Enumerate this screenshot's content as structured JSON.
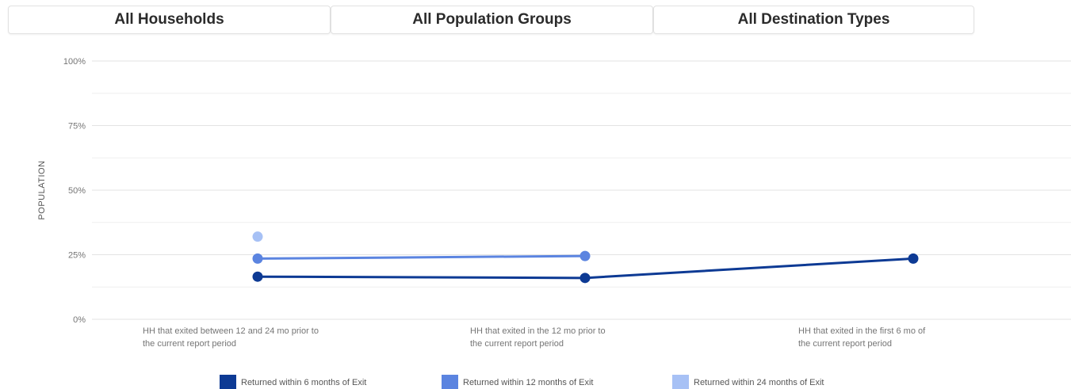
{
  "filters": {
    "households": "All Households",
    "population_groups": "All Population Groups",
    "destination_types": "All Destination Types"
  },
  "chart_data": {
    "type": "line",
    "title": "",
    "xlabel": "",
    "ylabel": "POPULATION",
    "ylim": [
      0,
      100
    ],
    "y_ticks": [
      "0%",
      "25%",
      "50%",
      "75%",
      "100%"
    ],
    "y_tick_values": [
      0,
      25,
      50,
      75,
      100
    ],
    "grid": true,
    "legend_position": "bottom",
    "categories": [
      [
        "HH that exited between 12 and 24 mo prior to",
        "the current report period"
      ],
      [
        "HH that exited in the 12 mo prior to",
        "the current report period"
      ],
      [
        "HH that exited in the first 6 mo of",
        "the current report period"
      ]
    ],
    "series": [
      {
        "name": "Returned within 6 months of Exit",
        "color": "#0d3a94",
        "values": [
          16.5,
          16,
          23.5
        ]
      },
      {
        "name": "Returned within 12 months of Exit",
        "color": "#5b84e0",
        "values": [
          23.5,
          24.5,
          null
        ]
      },
      {
        "name": "Returned within 24 months of Exit",
        "color": "#a7c1f5",
        "values": [
          32,
          null,
          null
        ]
      }
    ]
  }
}
